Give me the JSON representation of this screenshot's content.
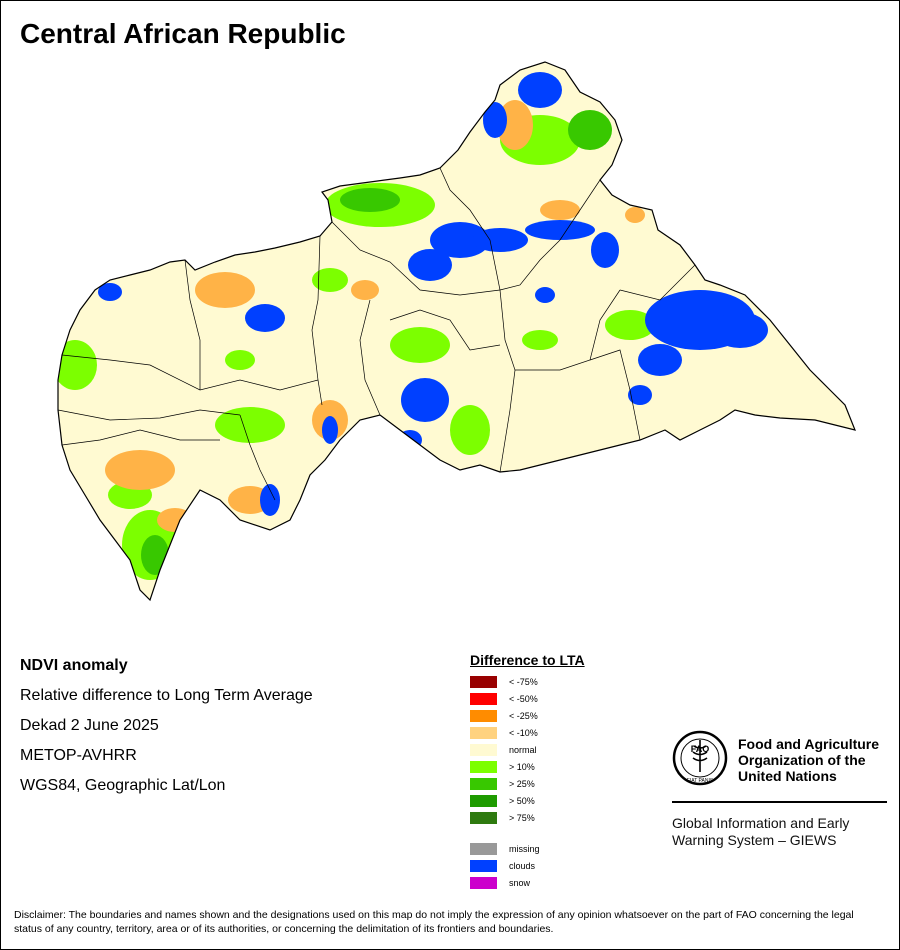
{
  "title": "Central African Republic",
  "map_info": {
    "product": "NDVI anomaly",
    "description": "Relative difference to Long Term Average",
    "period": "Dekad 2 June 2025",
    "sensor": "METOP-AVHRR",
    "projection": "WGS84, Geographic Lat/Lon"
  },
  "legend": {
    "title": "Difference to LTA",
    "classes": [
      {
        "label": "< -75%",
        "color": "#990000"
      },
      {
        "label": "< -50%",
        "color": "#ff0000"
      },
      {
        "label": "< -25%",
        "color": "#ff8c00"
      },
      {
        "label": "< -10%",
        "color": "#ffd27f"
      },
      {
        "label": "normal",
        "color": "#fffad2"
      },
      {
        "label": "> 10%",
        "color": "#7cff00"
      },
      {
        "label": "> 25%",
        "color": "#38c800"
      },
      {
        "label": "> 50%",
        "color": "#1e9b00"
      },
      {
        "label": "> 75%",
        "color": "#2e7a0f"
      }
    ],
    "extra_classes": [
      {
        "label": "missing",
        "color": "#999999"
      },
      {
        "label": "clouds",
        "color": "#0040ff"
      },
      {
        "label": "snow",
        "color": "#cc00cc"
      }
    ]
  },
  "organization": {
    "name_line1": "Food and Agriculture",
    "name_line2": "Organization of the",
    "name_line3": "United Nations",
    "logo_text": "FAO",
    "logo_motto": "FIAT PANIS",
    "system_line1": "Global Information and Early",
    "system_line2": "Warning System – GIEWS"
  },
  "disclaimer": "Disclaimer: The boundaries and names shown and the designations used on this map do not imply the expression of any opinion whatsoever on the part of FAO concerning the legal status of any country, territory, area or of its authorities, or concerning the delimitation of its frontiers and boundaries."
}
